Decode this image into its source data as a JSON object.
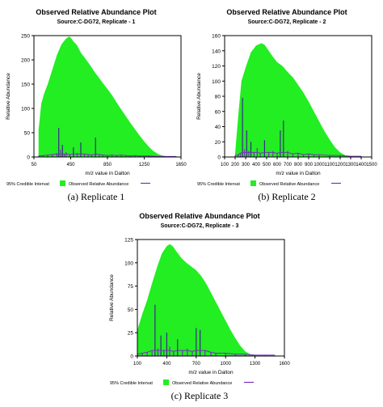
{
  "colors": {
    "band": "#22ee22",
    "observed": "#7b2fbe",
    "observed_tall": "#3a2a86",
    "axis": "#000000"
  },
  "chart_data": [
    {
      "type": "area",
      "title": "Observed Relative Abundance Plot",
      "subtitle": "Source:C-DG72, Replicate - 1",
      "xlabel": "m/z value in Dalton",
      "ylabel": "Relative Abundance",
      "xlim": [
        50,
        1650
      ],
      "ylim": [
        0,
        250
      ],
      "xticks": [
        "50",
        "450",
        "850",
        "1250",
        "1650"
      ],
      "yticks": [
        "0",
        "50",
        "100",
        "150",
        "200",
        "250"
      ],
      "legend": [
        "95% Credible Intervat",
        "Observed Relative Abundance"
      ],
      "legend_position": "bottom",
      "caption": "(a) Replicate 1",
      "series": [
        {
          "name": "95% Credible Intervat",
          "x": [
            100,
            130,
            160,
            200,
            250,
            300,
            350,
            400,
            430,
            450,
            480,
            520,
            560,
            600,
            650,
            700,
            750,
            800,
            850,
            900,
            950,
            1000,
            1050,
            1100,
            1150,
            1200,
            1250,
            1300,
            1350,
            1400,
            1450,
            1500
          ],
          "upper": [
            55,
            110,
            130,
            150,
            180,
            210,
            232,
            244,
            248,
            246,
            238,
            230,
            215,
            205,
            192,
            178,
            165,
            152,
            140,
            127,
            112,
            98,
            84,
            70,
            57,
            44,
            32,
            21,
            12,
            6,
            3,
            1
          ]
        },
        {
          "name": "Observed Relative Abundance",
          "x": [
            100,
            150,
            200,
            250,
            300,
            320,
            340,
            360,
            380,
            400,
            440,
            480,
            520,
            560,
            600,
            640,
            680,
            720,
            760,
            800,
            850,
            900,
            950,
            1000,
            1050,
            1100,
            1150,
            1200,
            1300,
            1400,
            1500,
            1600
          ],
          "values": [
            2,
            3,
            4,
            5,
            8,
            60,
            15,
            25,
            6,
            10,
            5,
            20,
            8,
            30,
            6,
            5,
            4,
            40,
            5,
            4,
            3,
            4,
            3,
            4,
            3,
            2,
            3,
            2,
            2,
            1,
            1,
            1
          ]
        }
      ]
    },
    {
      "type": "area",
      "title": "Observed Relative Abundance Plot",
      "subtitle": "Source:C-DG72, Replicate - 2",
      "xlabel": "m/z value in Dalton",
      "ylabel": "Relative Abundance",
      "xlim": [
        100,
        1500
      ],
      "ylim": [
        0,
        160
      ],
      "xticks": [
        "100",
        "200",
        "300",
        "400",
        "500",
        "600",
        "700",
        "800",
        "900",
        "1000",
        "1100",
        "1200",
        "1300",
        "1400",
        "1500"
      ],
      "yticks": [
        "0",
        "20",
        "40",
        "60",
        "80",
        "100",
        "120",
        "140",
        "160"
      ],
      "legend": [
        "95% Credible Intervat",
        "Observed Relative Abundance"
      ],
      "legend_position": "bottom",
      "caption": "(b) Replicate 2",
      "series": [
        {
          "name": "95% Credible Intervat",
          "x": [
            200,
            230,
            260,
            300,
            350,
            400,
            450,
            480,
            520,
            560,
            600,
            650,
            700,
            750,
            800,
            850,
            900,
            950,
            1000,
            1050,
            1100,
            1150,
            1200,
            1250,
            1300
          ],
          "upper": [
            5,
            55,
            100,
            118,
            138,
            147,
            150,
            148,
            140,
            132,
            125,
            120,
            112,
            105,
            95,
            85,
            73,
            60,
            47,
            34,
            23,
            13,
            6,
            2,
            1
          ]
        },
        {
          "name": "Observed Relative Abundance",
          "x": [
            200,
            230,
            250,
            270,
            290,
            310,
            330,
            350,
            380,
            410,
            440,
            480,
            520,
            560,
            600,
            630,
            660,
            700,
            750,
            800,
            850,
            900,
            950,
            1000,
            1100,
            1200,
            1300,
            1400
          ],
          "values": [
            2,
            3,
            5,
            78,
            10,
            35,
            8,
            20,
            6,
            12,
            5,
            22,
            6,
            8,
            5,
            35,
            48,
            8,
            4,
            5,
            3,
            4,
            3,
            3,
            2,
            2,
            1,
            1
          ]
        }
      ]
    },
    {
      "type": "area",
      "title": "Observed Relative Abundance Plot",
      "subtitle": "Source:C-DG72, Replicate - 3",
      "xlabel": "m/z value in Dalton",
      "ylabel": "Relative Abundance",
      "xlim": [
        100,
        1600
      ],
      "ylim": [
        0,
        125
      ],
      "xticks": [
        "100",
        "400",
        "700",
        "1000",
        "1300",
        "1600"
      ],
      "yticks": [
        "0",
        "25",
        "50",
        "75",
        "100",
        "125"
      ],
      "legend": [
        "95% Credible Intervat",
        "Observed Relative Abundance"
      ],
      "legend_position": "bottom",
      "caption": "(c) Replicate 3",
      "series": [
        {
          "name": "95% Credible Intervat",
          "x": [
            100,
            150,
            200,
            250,
            300,
            350,
            400,
            430,
            460,
            500,
            550,
            600,
            650,
            700,
            750,
            800,
            850,
            900,
            950,
            1000,
            1050,
            1100,
            1150,
            1200,
            1250,
            1300
          ],
          "upper": [
            28,
            45,
            60,
            78,
            95,
            110,
            118,
            120,
            118,
            112,
            105,
            100,
            96,
            92,
            86,
            78,
            68,
            58,
            48,
            38,
            28,
            19,
            11,
            5,
            2,
            1
          ]
        },
        {
          "name": "Observed Relative Abundance",
          "x": [
            100,
            150,
            200,
            250,
            280,
            310,
            340,
            370,
            400,
            430,
            470,
            510,
            560,
            610,
            660,
            700,
            740,
            790,
            850,
            900,
            1000,
            1100,
            1200,
            1300,
            1400,
            1500
          ],
          "values": [
            2,
            3,
            4,
            6,
            55,
            8,
            22,
            6,
            25,
            10,
            5,
            18,
            6,
            8,
            5,
            30,
            28,
            6,
            4,
            3,
            3,
            2,
            2,
            1,
            1,
            1
          ]
        }
      ]
    }
  ]
}
